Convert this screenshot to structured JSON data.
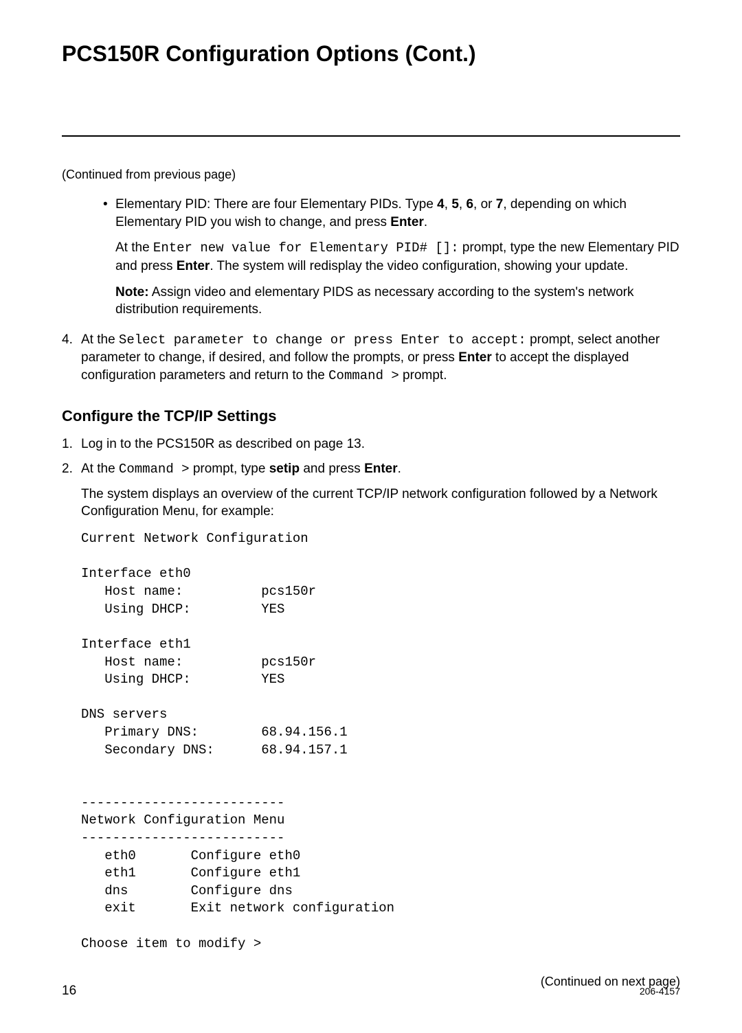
{
  "page_title": "PCS150R Configuration Options (Cont.)",
  "continued_from": "(Continued from previous page)",
  "bullet": {
    "p1_a": "Elementary PID: There are four Elementary PIDs. Type ",
    "p1_b1": "4",
    "p1_c1": ", ",
    "p1_b2": "5",
    "p1_c2": ", ",
    "p1_b3": "6",
    "p1_c3": ", or ",
    "p1_b4": "7",
    "p1_d": ", depending on which Elementary PID you wish to change, and press ",
    "p1_enter": "Enter",
    "p1_e": ".",
    "p2_a": "At the ",
    "p2_code": "Enter new value for Elementary PID# []:",
    "p2_b": " prompt, type the new Elementary PID and press ",
    "p2_enter": "Enter",
    "p2_c": ". The system will redisplay the video configuration, showing your update.",
    "p3_note": "Note:",
    "p3_rest": " Assign video and elementary PIDS as necessary according to the system's network distribution requirements."
  },
  "step4": {
    "num": "4.",
    "a": "At the ",
    "code1": "Select parameter to change or press Enter to accept:",
    "b": " prompt, select another parameter to change, if desired, and follow the prompts, or press ",
    "enter": "Enter",
    "c": " to accept the displayed configuration parameters and return to the ",
    "code2": "Command >",
    "d": " prompt."
  },
  "section_heading": "Configure the TCP/IP Settings",
  "tcpip": {
    "s1_num": "1.",
    "s1_text": "Log in to the PCS150R as described on page 13.",
    "s2_num": "2.",
    "s2_a": "At the ",
    "s2_code": "Command >",
    "s2_b": " prompt, type ",
    "s2_setip": "setip",
    "s2_c": " and press ",
    "s2_enter": "Enter",
    "s2_d": ".",
    "s2_follow": "The system displays an overview of the current TCP/IP network configuration followed by a Network Configuration Menu, for example:"
  },
  "terminal": "Current Network Configuration\n\nInterface eth0\n   Host name:          pcs150r\n   Using DHCP:         YES\n\nInterface eth1\n   Host name:          pcs150r\n   Using DHCP:         YES\n\nDNS servers\n   Primary DNS:        68.94.156.1\n   Secondary DNS:      68.94.157.1\n\n\n--------------------------\nNetwork Configuration Menu\n--------------------------\n   eth0       Configure eth0\n   eth1       Configure eth1\n   dns        Configure dns\n   exit       Exit network configuration\n\nChoose item to modify >",
  "continued_next": "(Continued on next page)",
  "footer": {
    "page": "16",
    "doc": "206-4157"
  }
}
